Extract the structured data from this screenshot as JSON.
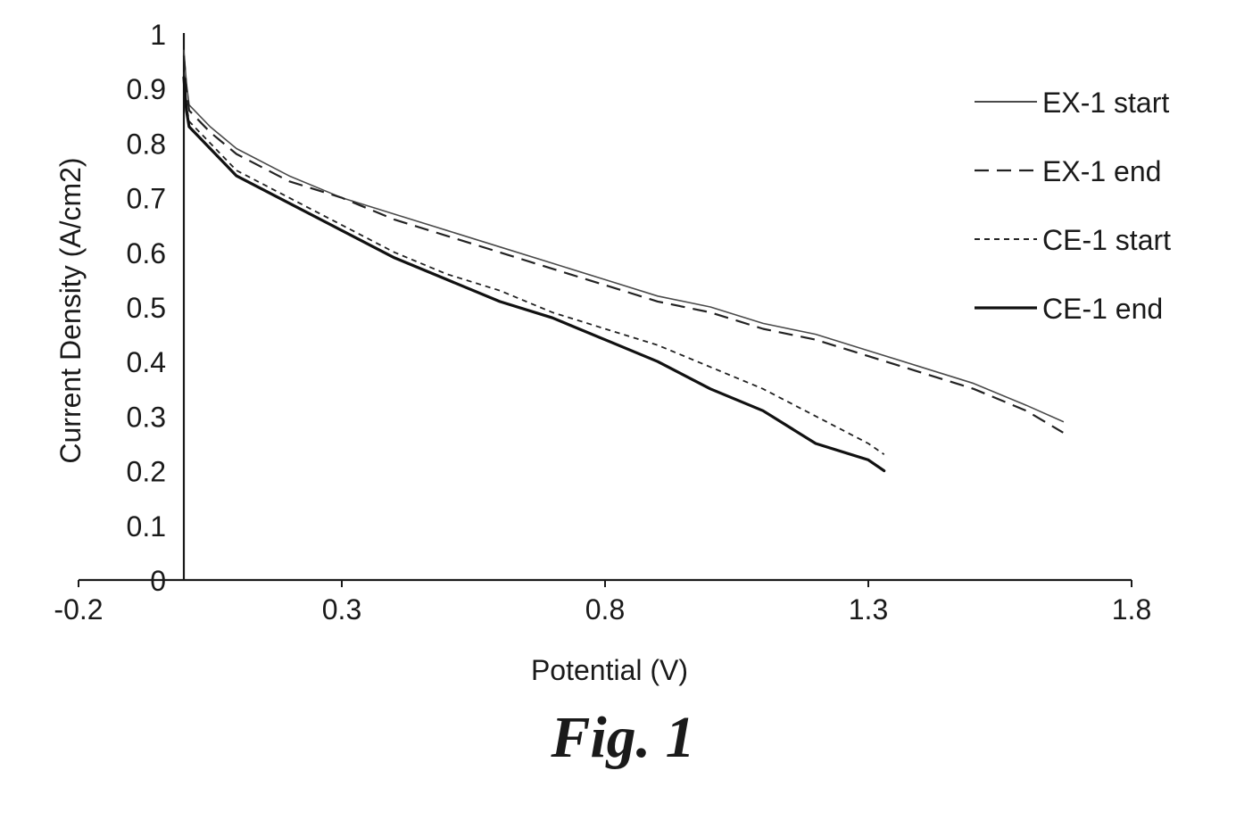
{
  "chart_data": {
    "type": "line",
    "title": "",
    "xlabel": "Potential (V)",
    "ylabel": "Current Density (A/cm2)",
    "xlim": [
      -0.2,
      1.8
    ],
    "ylim": [
      0,
      1
    ],
    "xticks": [
      -0.2,
      0.3,
      0.8,
      1.3,
      1.8
    ],
    "xtick_labels": [
      "-0.2",
      "0.3",
      "0.8",
      "1.3",
      "1.8"
    ],
    "yticks": [
      0,
      0.1,
      0.2,
      0.3,
      0.4,
      0.5,
      0.6,
      0.7,
      0.8,
      0.9,
      1
    ],
    "ytick_labels": [
      "0",
      "0.1",
      "0.2",
      "0.3",
      "0.4",
      "0.5",
      "0.6",
      "0.7",
      "0.8",
      "0.9",
      "1"
    ],
    "grid": false,
    "legend_position": "top-right",
    "series": [
      {
        "name": "EX-1 start",
        "style": "solid",
        "color": "#4a4a4a",
        "width": 1.6,
        "x": [
          0.0,
          0.005,
          0.01,
          0.05,
          0.1,
          0.2,
          0.3,
          0.4,
          0.5,
          0.6,
          0.7,
          0.8,
          0.9,
          1.0,
          1.1,
          1.2,
          1.3,
          1.4,
          1.5,
          1.6,
          1.67
        ],
        "y": [
          0.97,
          0.91,
          0.87,
          0.83,
          0.79,
          0.74,
          0.7,
          0.67,
          0.64,
          0.61,
          0.58,
          0.55,
          0.52,
          0.5,
          0.47,
          0.45,
          0.42,
          0.39,
          0.36,
          0.32,
          0.29
        ]
      },
      {
        "name": "EX-1 end",
        "style": "dash",
        "color": "#222222",
        "width": 2.2,
        "x": [
          0.0,
          0.005,
          0.01,
          0.05,
          0.1,
          0.2,
          0.3,
          0.4,
          0.5,
          0.6,
          0.7,
          0.8,
          0.9,
          1.0,
          1.1,
          1.2,
          1.3,
          1.4,
          1.5,
          1.6,
          1.67
        ],
        "y": [
          0.96,
          0.9,
          0.86,
          0.82,
          0.78,
          0.73,
          0.7,
          0.66,
          0.63,
          0.6,
          0.57,
          0.54,
          0.51,
          0.49,
          0.46,
          0.44,
          0.41,
          0.38,
          0.35,
          0.31,
          0.27
        ]
      },
      {
        "name": "CE-1 start",
        "style": "dot",
        "color": "#222222",
        "width": 1.8,
        "x": [
          0.0,
          0.005,
          0.01,
          0.05,
          0.1,
          0.2,
          0.3,
          0.4,
          0.5,
          0.6,
          0.7,
          0.8,
          0.9,
          1.0,
          1.1,
          1.2,
          1.3,
          1.33
        ],
        "y": [
          0.93,
          0.87,
          0.84,
          0.8,
          0.75,
          0.7,
          0.65,
          0.6,
          0.56,
          0.53,
          0.49,
          0.46,
          0.43,
          0.39,
          0.35,
          0.3,
          0.25,
          0.23
        ]
      },
      {
        "name": "CE-1 end",
        "style": "solid",
        "color": "#111111",
        "width": 3.2,
        "x": [
          0.0,
          0.005,
          0.01,
          0.05,
          0.1,
          0.2,
          0.3,
          0.4,
          0.5,
          0.6,
          0.7,
          0.8,
          0.9,
          1.0,
          1.1,
          1.2,
          1.3,
          1.33
        ],
        "y": [
          0.92,
          0.86,
          0.83,
          0.79,
          0.74,
          0.69,
          0.64,
          0.59,
          0.55,
          0.51,
          0.48,
          0.44,
          0.4,
          0.35,
          0.31,
          0.25,
          0.22,
          0.2
        ]
      }
    ]
  },
  "figure": {
    "caption": "Fig. 1"
  }
}
